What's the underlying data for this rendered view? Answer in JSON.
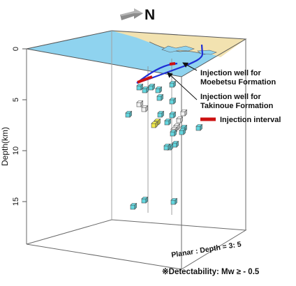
{
  "compass": {
    "label": "N"
  },
  "axis": {
    "label": "Depth(km)",
    "ticks": [
      {
        "label": "0",
        "value": 0
      },
      {
        "label": "5",
        "value": 5
      },
      {
        "label": "10",
        "value": 10
      },
      {
        "label": "15",
        "value": 15
      }
    ]
  },
  "annotations": {
    "moebetsu": [
      "Injection well for",
      "Moebetsu Formation"
    ],
    "takinoue": [
      "Injection well for",
      "Takinoue Formation"
    ],
    "injection_interval": "Injection interval",
    "scale_note": "Planar : Depth = 3: 5",
    "detectability": "※Detectability: Mw ≥ - 0.5"
  },
  "colors": {
    "sea": "#8fd3ef",
    "land": "#f2e2b0",
    "well": "#1f2fd6",
    "injection_interval": "#cc1111",
    "event_cyan": "#63d6df",
    "event_white": "#f2f2f2",
    "event_yellow": "#f2ea4a"
  },
  "events": [
    {
      "color": "cyan",
      "depth": 3.8
    },
    {
      "color": "cyan",
      "depth": 4.0
    },
    {
      "color": "cyan",
      "depth": 3.9
    },
    {
      "color": "cyan",
      "depth": 4.2
    },
    {
      "color": "cyan",
      "depth": 3.6
    },
    {
      "color": "cyan",
      "depth": 4.6
    },
    {
      "color": "cyan",
      "depth": 5.0
    },
    {
      "color": "white",
      "depth": 5.8
    },
    {
      "color": "white",
      "depth": 6.2
    },
    {
      "color": "cyan",
      "depth": 6.8
    },
    {
      "color": "cyan",
      "depth": 6.9
    },
    {
      "color": "cyan",
      "depth": 7.0
    },
    {
      "color": "yellow",
      "depth": 7.4
    },
    {
      "color": "yellow",
      "depth": 7.6
    },
    {
      "color": "white",
      "depth": 6.7
    },
    {
      "color": "white",
      "depth": 7.1
    },
    {
      "color": "white",
      "depth": 7.8
    },
    {
      "color": "white",
      "depth": 8.3
    },
    {
      "color": "cyan",
      "depth": 7.5
    },
    {
      "color": "cyan",
      "depth": 8.0
    },
    {
      "color": "cyan",
      "depth": 8.3
    },
    {
      "color": "cyan",
      "depth": 8.5
    },
    {
      "color": "cyan",
      "depth": 8.8
    },
    {
      "color": "cyan",
      "depth": 9.3
    },
    {
      "color": "cyan",
      "depth": 9.7
    },
    {
      "color": "cyan",
      "depth": 10.2
    },
    {
      "color": "cyan",
      "depth": 16.0
    },
    {
      "color": "cyan",
      "depth": 16.4
    },
    {
      "color": "cyan",
      "depth": 16.3
    }
  ]
}
